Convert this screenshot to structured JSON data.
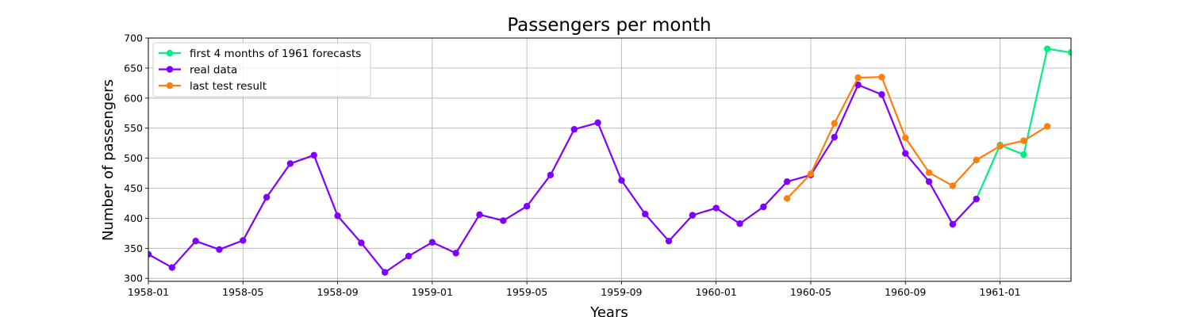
{
  "chart_data": {
    "type": "line",
    "title": "Passengers per month",
    "xlabel": "Years",
    "ylabel": "Number of passengers",
    "x_ticks": [
      "1958-01",
      "1958-05",
      "1958-09",
      "1959-01",
      "1959-05",
      "1959-09",
      "1960-01",
      "1960-05",
      "1960-09",
      "1961-01"
    ],
    "y_ticks": [
      300,
      350,
      400,
      450,
      500,
      550,
      600,
      650,
      700
    ],
    "xlim": [
      "1958-01",
      "1961-04"
    ],
    "ylim": [
      295,
      700
    ],
    "grid": true,
    "legend_position": "top-left",
    "series": [
      {
        "name": "first 4 months of 1961 forecasts",
        "color": "#00f080",
        "x": [
          "1960-12",
          "1961-01",
          "1961-02",
          "1961-03",
          "1961-04"
        ],
        "values": [
          432,
          522,
          506,
          682,
          676
        ]
      },
      {
        "name": "real data",
        "color": "#7f00ff",
        "x": [
          "1958-01",
          "1958-02",
          "1958-03",
          "1958-04",
          "1958-05",
          "1958-06",
          "1958-07",
          "1958-08",
          "1958-09",
          "1958-10",
          "1958-11",
          "1958-12",
          "1959-01",
          "1959-02",
          "1959-03",
          "1959-04",
          "1959-05",
          "1959-06",
          "1959-07",
          "1959-08",
          "1959-09",
          "1959-10",
          "1959-11",
          "1959-12",
          "1960-01",
          "1960-02",
          "1960-03",
          "1960-04",
          "1960-05",
          "1960-06",
          "1960-07",
          "1960-08",
          "1960-09",
          "1960-10",
          "1960-11",
          "1960-12"
        ],
        "values": [
          340,
          318,
          362,
          348,
          363,
          435,
          491,
          505,
          404,
          359,
          310,
          337,
          360,
          342,
          406,
          396,
          420,
          472,
          548,
          559,
          463,
          407,
          362,
          405,
          417,
          391,
          419,
          461,
          472,
          535,
          622,
          606,
          508,
          461,
          390,
          432
        ]
      },
      {
        "name": "last test result",
        "color": "#ff7f0e",
        "x": [
          "1960-04",
          "1960-05",
          "1960-06",
          "1960-07",
          "1960-08",
          "1960-09",
          "1960-10",
          "1960-11",
          "1960-12",
          "1961-01",
          "1961-02",
          "1961-03"
        ],
        "values": [
          433,
          474,
          558,
          634,
          635,
          534,
          476,
          454,
          497,
          520,
          529,
          553
        ]
      }
    ]
  }
}
